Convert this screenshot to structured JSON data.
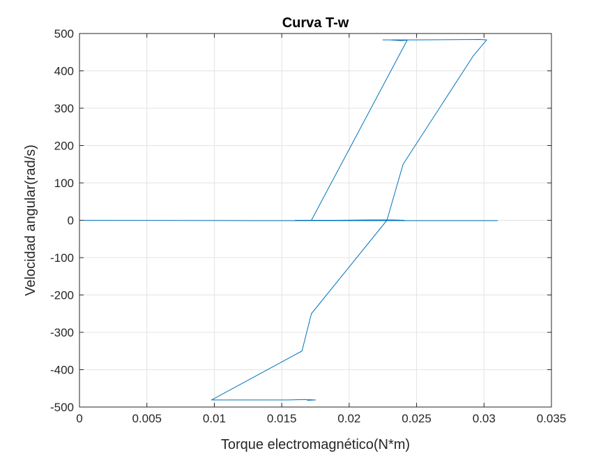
{
  "chart_data": {
    "type": "line",
    "title": "Curva T-w",
    "xlabel": "Torque electromagnético(N*m)",
    "ylabel": "Velocidad angular(rad/s)",
    "xlim": [
      0,
      0.035
    ],
    "ylim": [
      -500,
      500
    ],
    "xticks": [
      0,
      0.005,
      0.01,
      0.015,
      0.02,
      0.025,
      0.03,
      0.035
    ],
    "xtick_labels": [
      "0",
      "0.005",
      "0.01",
      "0.015",
      "0.02",
      "0.025",
      "0.03",
      "0.035"
    ],
    "yticks": [
      -500,
      -400,
      -300,
      -200,
      -100,
      0,
      100,
      200,
      300,
      400,
      500
    ],
    "ytick_labels": [
      "-500",
      "-400",
      "-300",
      "-200",
      "-100",
      "0",
      "100",
      "200",
      "300",
      "400",
      "500"
    ],
    "grid": true,
    "line_color": "#0072BD",
    "series": [
      {
        "x": [
          0,
          0.016,
          0.031,
          0.0185,
          0.0165,
          0.0215,
          0.0232,
          0.0241,
          0.0235,
          0.0224,
          0.0192,
          0.016,
          0.0172,
          0.0243,
          0.0238,
          0.023,
          0.0225,
          0.025,
          0.0297,
          0.0302,
          0.0292,
          0.024,
          0.0228,
          0.0172,
          0.0165,
          0.0098,
          0.0155,
          0.0167,
          0.0175,
          0.0169
        ],
        "y": [
          0,
          -1,
          -1,
          -1,
          -1,
          1,
          1,
          0,
          0,
          0,
          0,
          0,
          0,
          482,
          481,
          483,
          483,
          483,
          484,
          483,
          440,
          150,
          0,
          -250,
          -350,
          -481,
          -481,
          -480,
          -481,
          -482
        ]
      }
    ]
  }
}
